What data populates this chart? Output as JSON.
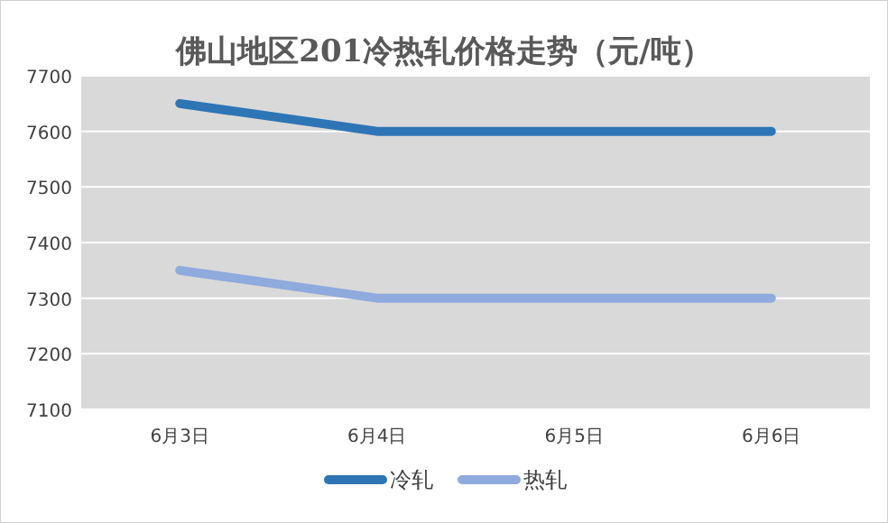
{
  "chart_data": {
    "type": "line",
    "title": "佛山地区201冷热轧价格走势（元/吨）",
    "categories": [
      "6月3日",
      "6月4日",
      "6月5日",
      "6月6日"
    ],
    "series": [
      {
        "name": "冷轧",
        "color": "#2e75b6",
        "values": [
          7650,
          7600,
          7600,
          7600
        ]
      },
      {
        "name": "热轧",
        "color": "#8faadc",
        "values": [
          7350,
          7300,
          7300,
          7300
        ]
      }
    ],
    "ylim": [
      7100,
      7700
    ],
    "yticks": [
      7100,
      7200,
      7300,
      7400,
      7500,
      7600,
      7700
    ],
    "grid": "y",
    "legend": "bottom",
    "marker": "none",
    "line_style": "solid"
  }
}
